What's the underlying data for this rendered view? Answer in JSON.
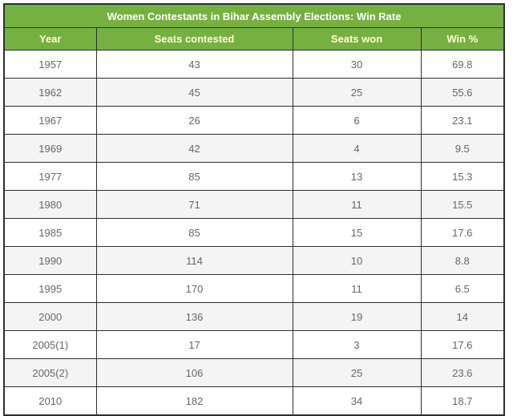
{
  "chart_data": {
    "type": "table",
    "title": "Women Contestants in Bihar Assembly Elections: Win Rate",
    "columns": [
      "Year",
      "Seats contested",
      "Seats won",
      "Win %"
    ],
    "rows": [
      [
        "1957",
        "43",
        "30",
        "69.8"
      ],
      [
        "1962",
        "45",
        "25",
        "55.6"
      ],
      [
        "1967",
        "26",
        "6",
        "23.1"
      ],
      [
        "1969",
        "42",
        "4",
        "9.5"
      ],
      [
        "1977",
        "85",
        "13",
        "15.3"
      ],
      [
        "1980",
        "71",
        "11",
        "15.5"
      ],
      [
        "1985",
        "85",
        "15",
        "17.6"
      ],
      [
        "1990",
        "114",
        "10",
        "8.8"
      ],
      [
        "1995",
        "170",
        "11",
        "6.5"
      ],
      [
        "2000",
        "136",
        "19",
        "14"
      ],
      [
        "2005(1)",
        "17",
        "3",
        "17.6"
      ],
      [
        "2005(2)",
        "106",
        "25",
        "23.6"
      ],
      [
        "2010",
        "182",
        "34",
        "18.7"
      ]
    ]
  },
  "colors": {
    "header_bg": "#76b043",
    "title_text": "#ffffff",
    "header_text": "#ffffcc",
    "border": "#2e2e2e",
    "row_bg": "#ffffff",
    "row_alt_bg": "#f4f4f4",
    "cell_text": "#666666"
  }
}
